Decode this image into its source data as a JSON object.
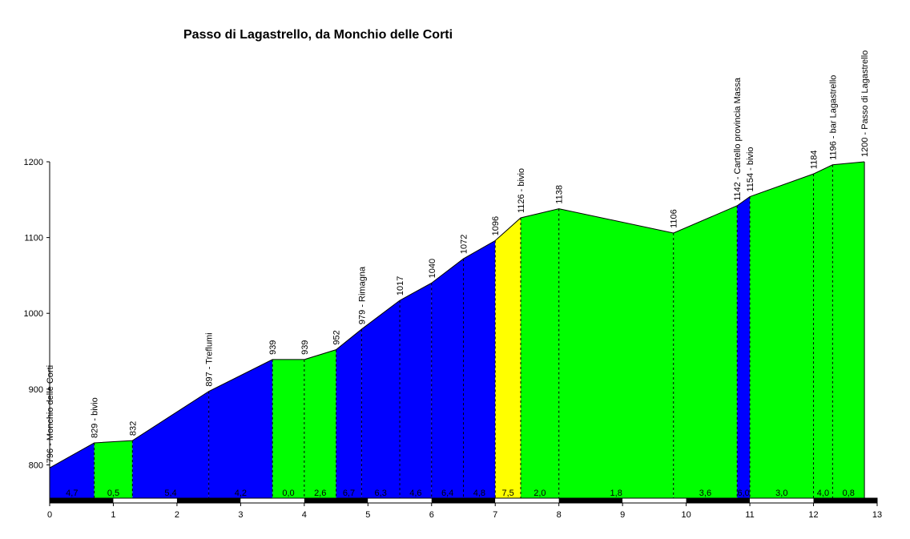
{
  "chart_data": {
    "type": "area",
    "title": "Passo di Lagastrello, da Monchio delle Corti",
    "xlabel": "",
    "ylabel": "",
    "xlim": [
      0,
      13
    ],
    "ylim": [
      755,
      1200
    ],
    "x_ticks": [
      0,
      1,
      2,
      3,
      4,
      5,
      6,
      7,
      8,
      9,
      10,
      11,
      12,
      13
    ],
    "y_ticks": [
      800,
      900,
      1000,
      1100,
      1200
    ],
    "grid": false,
    "legend": "none",
    "points": [
      {
        "x": 0.0,
        "y": 796,
        "label": "796 - Monchio delle Corti"
      },
      {
        "x": 0.7,
        "y": 829,
        "label": "829 - bivio"
      },
      {
        "x": 1.3,
        "y": 832,
        "label": "832"
      },
      {
        "x": 2.5,
        "y": 897,
        "label": "897 - Treflumi"
      },
      {
        "x": 3.5,
        "y": 939,
        "label": "939"
      },
      {
        "x": 4.0,
        "y": 939,
        "label": "939"
      },
      {
        "x": 4.5,
        "y": 952,
        "label": "952"
      },
      {
        "x": 4.9,
        "y": 979,
        "label": "979 - Rimagna"
      },
      {
        "x": 5.5,
        "y": 1017,
        "label": "1017"
      },
      {
        "x": 6.0,
        "y": 1040,
        "label": "1040"
      },
      {
        "x": 6.5,
        "y": 1072,
        "label": "1072"
      },
      {
        "x": 7.0,
        "y": 1096,
        "label": "1096"
      },
      {
        "x": 7.4,
        "y": 1126,
        "label": "1126 - bivio"
      },
      {
        "x": 8.0,
        "y": 1138,
        "label": "1138"
      },
      {
        "x": 9.8,
        "y": 1106,
        "label": "1106"
      },
      {
        "x": 10.8,
        "y": 1142,
        "label": "1142 - Cartello provincia Massa"
      },
      {
        "x": 11.0,
        "y": 1154,
        "label": "1154 - bivio"
      },
      {
        "x": 12.0,
        "y": 1184,
        "label": "1184"
      },
      {
        "x": 12.3,
        "y": 1196,
        "label": "1196 - bar Lagastrello"
      },
      {
        "x": 12.8,
        "y": 1200,
        "label": "1200 - Passo di Lagastrello"
      }
    ],
    "segments": [
      {
        "gradient": "4,7",
        "color": "#0000ff"
      },
      {
        "gradient": "0,5",
        "color": "#00ff00"
      },
      {
        "gradient": "5,4",
        "color": "#0000ff"
      },
      {
        "gradient": "4,2",
        "color": "#0000ff"
      },
      {
        "gradient": "0,0",
        "color": "#00ff00"
      },
      {
        "gradient": "2,6",
        "color": "#00ff00"
      },
      {
        "gradient": "6,7",
        "color": "#0000ff"
      },
      {
        "gradient": "6,3",
        "color": "#0000ff"
      },
      {
        "gradient": "4,6",
        "color": "#0000ff"
      },
      {
        "gradient": "6,4",
        "color": "#0000ff"
      },
      {
        "gradient": "4,8",
        "color": "#0000ff"
      },
      {
        "gradient": "7,5",
        "color": "#ffff00"
      },
      {
        "gradient": "2,0",
        "color": "#00ff00"
      },
      {
        "gradient": "1,8",
        "color": "#00ff00"
      },
      {
        "gradient": "3,6",
        "color": "#00ff00"
      },
      {
        "gradient": "6,0",
        "color": "#0000ff"
      },
      {
        "gradient": "3,0",
        "color": "#00ff00"
      },
      {
        "gradient": "4,0",
        "color": "#00ff00"
      },
      {
        "gradient": "0,8",
        "color": "#00ff00"
      }
    ]
  }
}
